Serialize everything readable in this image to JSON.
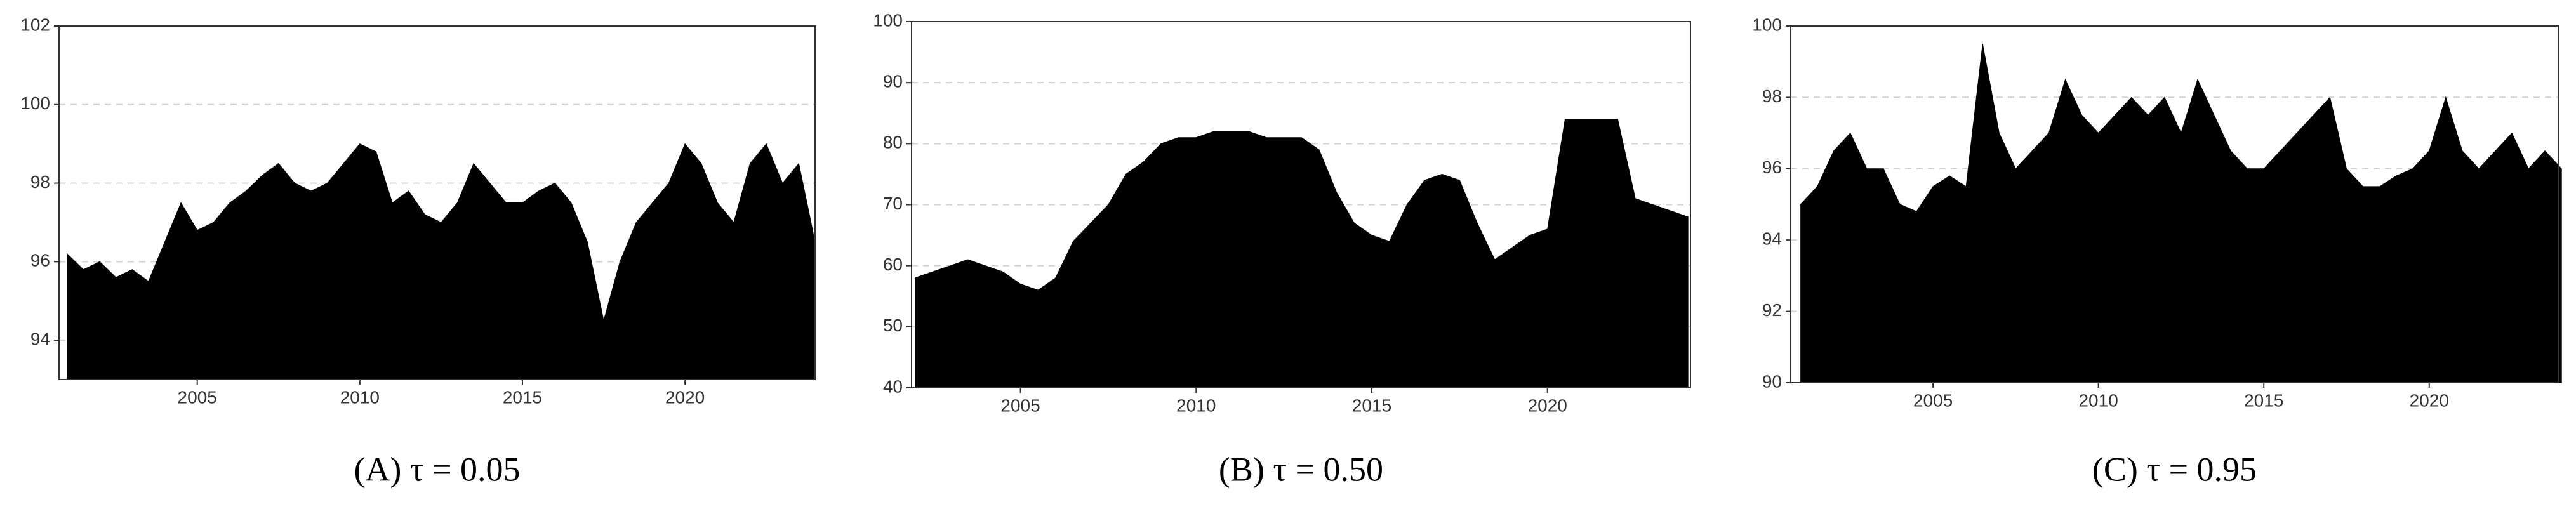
{
  "chart_data": [
    {
      "type": "area",
      "caption": "(A) τ = 0.05",
      "color": "#000000",
      "grid": true,
      "x": [
        2001,
        2001.5,
        2002,
        2002.5,
        2003,
        2003.5,
        2004,
        2004.5,
        2005,
        2005.5,
        2006,
        2006.5,
        2007,
        2007.5,
        2008,
        2008.5,
        2009,
        2009.5,
        2010,
        2010.5,
        2011,
        2011.5,
        2012,
        2012.5,
        2013,
        2013.5,
        2014,
        2014.5,
        2015,
        2015.5,
        2016,
        2016.5,
        2017,
        2017.5,
        2018,
        2018.5,
        2019,
        2019.5,
        2020,
        2020.5,
        2021,
        2021.5,
        2022,
        2022.5,
        2023,
        2023.5,
        2024
      ],
      "values": [
        96.2,
        95.8,
        96.0,
        95.6,
        95.8,
        95.5,
        96.5,
        97.5,
        96.8,
        97.0,
        97.5,
        97.8,
        98.2,
        98.5,
        98.0,
        97.8,
        98.0,
        98.5,
        99.0,
        98.8,
        97.5,
        97.8,
        97.2,
        97.0,
        97.5,
        98.5,
        98.0,
        97.5,
        97.5,
        97.8,
        98.0,
        97.5,
        96.5,
        94.5,
        96.0,
        97.0,
        97.5,
        98.0,
        99.0,
        98.5,
        97.5,
        97.0,
        98.5,
        99.0,
        98.0,
        98.5,
        96.5
      ],
      "xlim": [
        2000.75,
        2024.0
      ],
      "xticks": [
        2005,
        2010,
        2015,
        2020
      ],
      "ylim": [
        93,
        102
      ],
      "yticks": [
        94,
        96,
        98,
        100,
        102
      ]
    },
    {
      "type": "area",
      "caption": "(B) τ = 0.50",
      "color": "#000000",
      "grid": true,
      "x": [
        2002,
        2002.5,
        2003,
        2003.5,
        2004,
        2004.5,
        2005,
        2005.5,
        2006,
        2006.5,
        2007,
        2007.5,
        2008,
        2008.5,
        2009,
        2009.5,
        2010,
        2010.5,
        2011,
        2011.5,
        2012,
        2012.5,
        2013,
        2013.5,
        2014,
        2014.5,
        2015,
        2015.5,
        2016,
        2016.5,
        2017,
        2017.5,
        2018,
        2018.5,
        2019,
        2019.5,
        2020,
        2020.5,
        2021,
        2021.5,
        2022,
        2022.5,
        2023,
        2023.5,
        2024
      ],
      "values": [
        58,
        59,
        60,
        61,
        60,
        59,
        57,
        56,
        58,
        64,
        67,
        70,
        75,
        77,
        80,
        81,
        81,
        82,
        82,
        82,
        81,
        81,
        81,
        79,
        72,
        67,
        65,
        64,
        70,
        74,
        75,
        74,
        67,
        61,
        63,
        65,
        66,
        84,
        84,
        84,
        84,
        71,
        70,
        69,
        68
      ],
      "xlim": [
        2001.9,
        2024.07
      ],
      "xticks": [
        2005,
        2010,
        2015,
        2020
      ],
      "ylim": [
        40,
        100
      ],
      "yticks": [
        40,
        50,
        60,
        70,
        80,
        90,
        100
      ]
    },
    {
      "type": "area",
      "caption": "(C) τ = 0.95",
      "color": "#000000",
      "grid": true,
      "x": [
        2001,
        2001.5,
        2002,
        2002.5,
        2003,
        2003.5,
        2004,
        2004.5,
        2005,
        2005.5,
        2006,
        2006.5,
        2007,
        2007.5,
        2008,
        2008.5,
        2009,
        2009.5,
        2010,
        2010.5,
        2011,
        2011.5,
        2012,
        2012.5,
        2013,
        2013.5,
        2014,
        2014.5,
        2015,
        2015.5,
        2016,
        2016.5,
        2017,
        2017.5,
        2018,
        2018.5,
        2019,
        2019.5,
        2020,
        2020.5,
        2021,
        2021.5,
        2022,
        2022.5,
        2023,
        2023.5,
        2024
      ],
      "values": [
        95,
        95.5,
        96.5,
        97,
        96,
        96,
        95,
        94.8,
        95.5,
        95.8,
        95.5,
        99.5,
        97,
        96,
        96.5,
        97,
        98.5,
        97.5,
        97,
        97.5,
        98,
        97.5,
        98,
        97,
        98.5,
        97.5,
        96.5,
        96,
        96,
        96.5,
        97,
        97.5,
        98,
        96,
        95.5,
        95.5,
        95.8,
        96,
        96.5,
        98,
        96.5,
        96,
        96.5,
        97,
        96,
        96.5,
        96
      ],
      "xlim": [
        2000.7,
        2023.9
      ],
      "xticks": [
        2005,
        2010,
        2015,
        2020
      ],
      "ylim": [
        90,
        100
      ],
      "yticks": [
        90,
        92,
        94,
        96,
        98,
        100
      ]
    }
  ]
}
